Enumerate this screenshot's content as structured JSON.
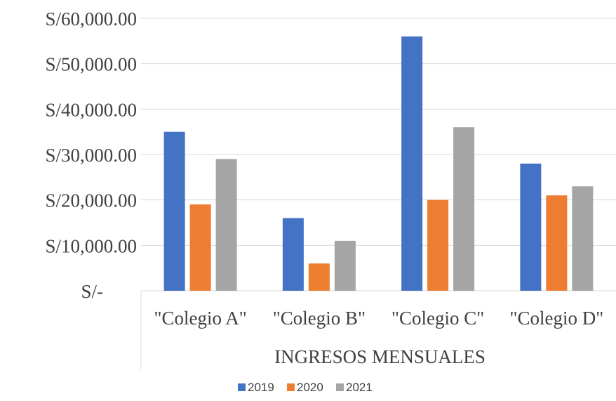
{
  "chart_data": {
    "type": "bar",
    "categories": [
      "\"Colegio A\"",
      "\"Colegio B\"",
      "\"Colegio C\"",
      "\"Colegio D\""
    ],
    "group_label": "INGRESOS MENSUALES",
    "series": [
      {
        "name": "2019",
        "color": "#4472c4",
        "values": [
          35000,
          16000,
          56000,
          28000
        ]
      },
      {
        "name": "2020",
        "color": "#ed7d31",
        "values": [
          19000,
          6000,
          20000,
          21000
        ]
      },
      {
        "name": "2021",
        "color": "#a5a5a5",
        "values": [
          29000,
          11000,
          36000,
          23000
        ]
      }
    ],
    "ylim": [
      0,
      60000
    ],
    "yticks": [
      0,
      10000,
      20000,
      30000,
      40000,
      50000,
      60000
    ],
    "ytick_labels": [
      "S/-",
      "S/10,000.00",
      "S/20,000.00",
      "S/30,000.00",
      "S/40,000.00",
      "S/50,000.00",
      "S/60,000.00"
    ],
    "grid": true,
    "legend_position": "bottom"
  }
}
